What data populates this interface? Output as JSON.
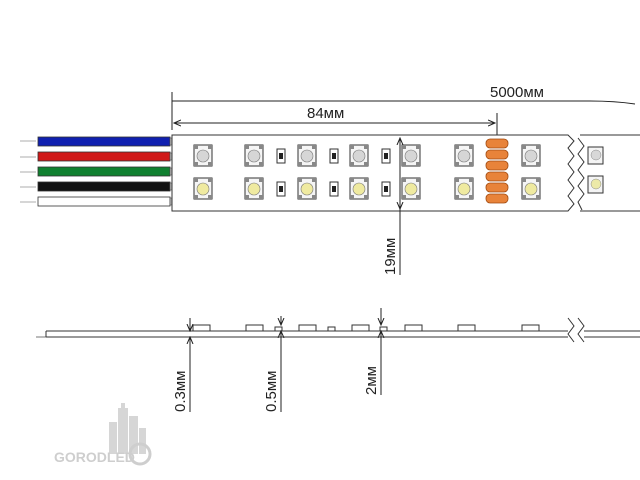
{
  "dimensions": {
    "total_length": "5000мм",
    "segment_length": "84мм",
    "width": "19мм",
    "pcb_thickness": "0.3мм",
    "led_gap": "0.5мм",
    "led_height": "2мм"
  },
  "wires": [
    {
      "color": "#1020b0"
    },
    {
      "color": "#d01818"
    },
    {
      "color": "#108030"
    },
    {
      "color": "#111111"
    },
    {
      "color": "#ffffff"
    }
  ],
  "logo": {
    "text": "GORODLED",
    "color": "#c9c9c9"
  }
}
